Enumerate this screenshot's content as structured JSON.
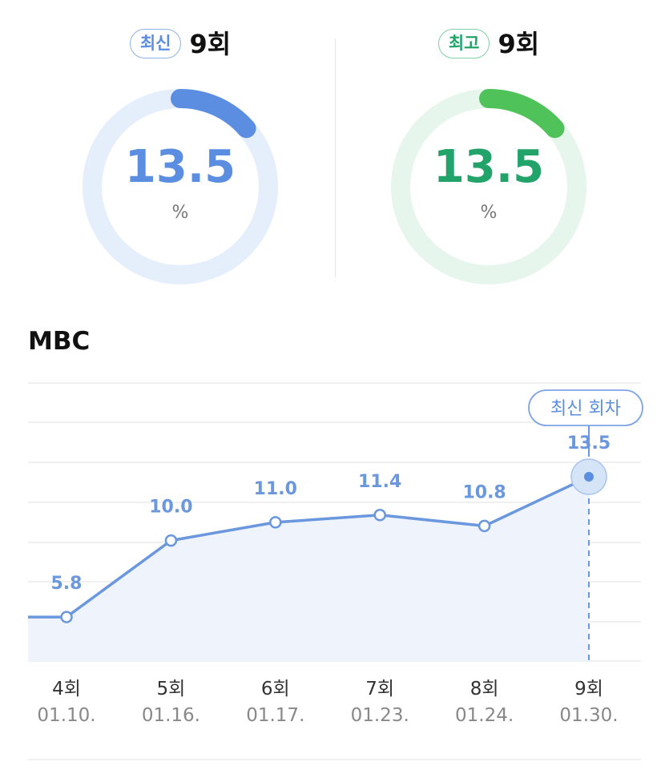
{
  "latest": {
    "badge": "최신",
    "episode": "9회",
    "value": "13.5",
    "unit": "%",
    "fraction": 0.135,
    "color": "#5b8ee0",
    "track_color": "#e5eefb"
  },
  "best": {
    "badge": "최고",
    "episode": "9회",
    "value": "13.5",
    "unit": "%",
    "fraction": 0.135,
    "color": "#4fc25a",
    "track_color": "#e6f6ec"
  },
  "chart_data": {
    "type": "line",
    "title": "MBC",
    "categories": [
      "4회",
      "5회",
      "6회",
      "7회",
      "8회",
      "9회"
    ],
    "dates": [
      "01.10.",
      "01.16.",
      "01.17.",
      "01.23.",
      "01.24.",
      "01.30."
    ],
    "series": [
      {
        "values": [
          5.8,
          10.0,
          11.0,
          11.4,
          10.8,
          13.5
        ],
        "labels": [
          "5.8",
          "10.0",
          "11.0",
          "11.4",
          "10.8",
          "13.5"
        ]
      }
    ],
    "highlight_label": "최신 회차",
    "highlight_index": 5,
    "line_color": "#6a97de",
    "fill_color": "#eef3fc",
    "grid": true
  }
}
